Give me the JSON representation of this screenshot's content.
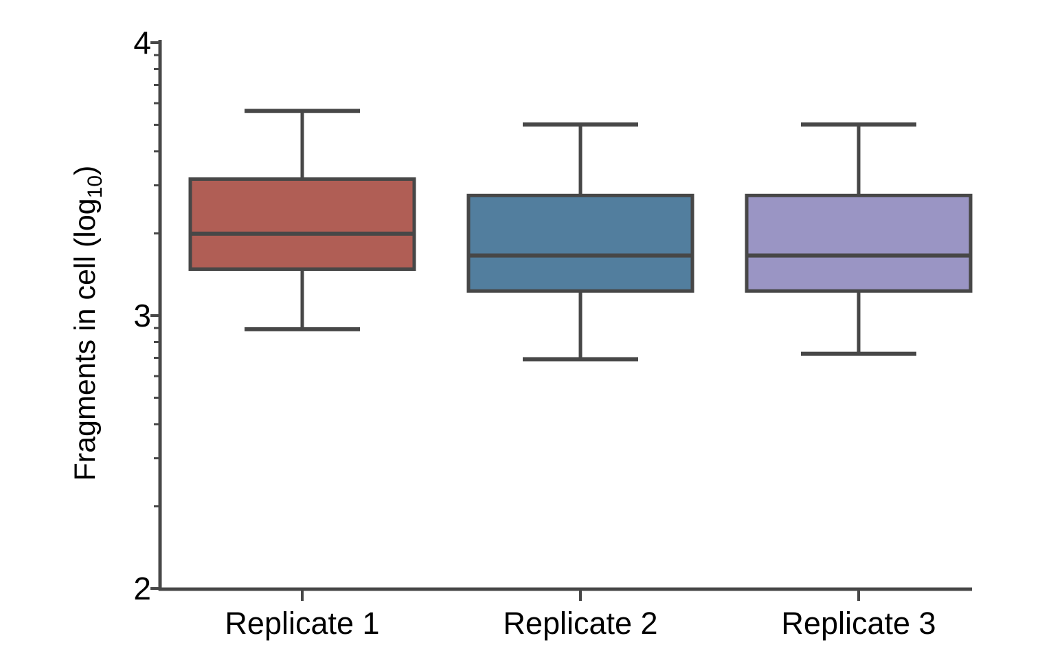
{
  "chart_data": {
    "type": "box",
    "title": "",
    "xlabel": "",
    "ylabel": "Fragments in cell (log10)",
    "ylabel_parts": {
      "prefix": "Fragments in cell (log",
      "sub": "10",
      "suffix": ")"
    },
    "categories": [
      "Replicate 1",
      "Replicate 2",
      "Replicate 3"
    ],
    "ylim": [
      2,
      4
    ],
    "y_major_ticks": [
      2,
      3,
      4
    ],
    "y_minor_tick_rule": "log10 minor ticks at base + log10(k) for k = 2..9 within each decade",
    "grid": false,
    "legend": null,
    "background": "#ffffff",
    "line_color": "#474747",
    "text_color": "#000000",
    "series": [
      {
        "name": "Replicate 1",
        "color": "#b05e55",
        "whisker_low": 2.95,
        "q1": 3.17,
        "median": 3.3,
        "q3": 3.5,
        "whisker_high": 3.75
      },
      {
        "name": "Replicate 2",
        "color": "#527e9e",
        "whisker_low": 2.84,
        "q1": 3.09,
        "median": 3.22,
        "q3": 3.44,
        "whisker_high": 3.7
      },
      {
        "name": "Replicate 3",
        "color": "#9a95c4",
        "whisker_low": 2.86,
        "q1": 3.09,
        "median": 3.22,
        "q3": 3.44,
        "whisker_high": 3.7
      }
    ]
  }
}
